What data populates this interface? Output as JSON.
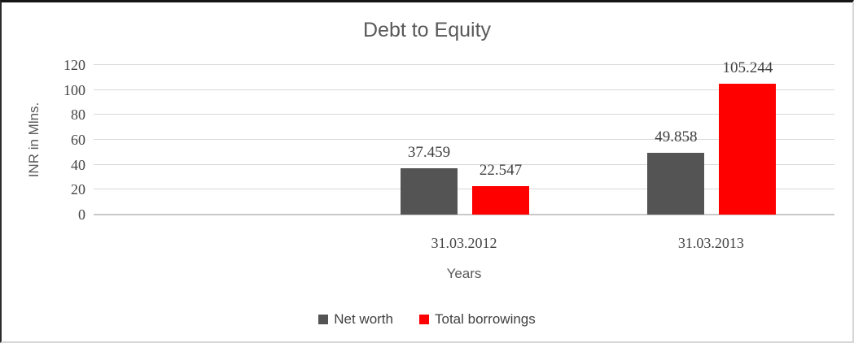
{
  "chart_data": {
    "type": "bar",
    "title": "Debt to Equity",
    "xlabel": "Years",
    "ylabel": "INR in Mlns.",
    "categories": [
      "31.03.2012",
      "31.03.2013"
    ],
    "series": [
      {
        "name": "Net worth",
        "color": "#545454",
        "values": [
          37.459,
          49.858
        ],
        "value_labels": [
          "37.459",
          "49.858"
        ]
      },
      {
        "name": "Total borrowings",
        "color": "#ff0000",
        "values": [
          22.547,
          105.244
        ],
        "value_labels": [
          "22.547",
          "105.244"
        ]
      }
    ],
    "y_ticks": [
      0,
      20,
      40,
      60,
      80,
      100,
      120
    ],
    "ylim": [
      0,
      120
    ],
    "grid": true,
    "legend_position": "bottom"
  },
  "colors": {
    "title_text": "#595959",
    "axis_title_text": "#595959",
    "tick_text": "#444444",
    "data_label_text": "#3f3f3f",
    "legend_text": "#404040",
    "gridline": "#d9d9d9",
    "axis_line": "#c9c9c9",
    "net_worth_bar": "#545454",
    "total_borrowings_bar": "#ff0000"
  }
}
